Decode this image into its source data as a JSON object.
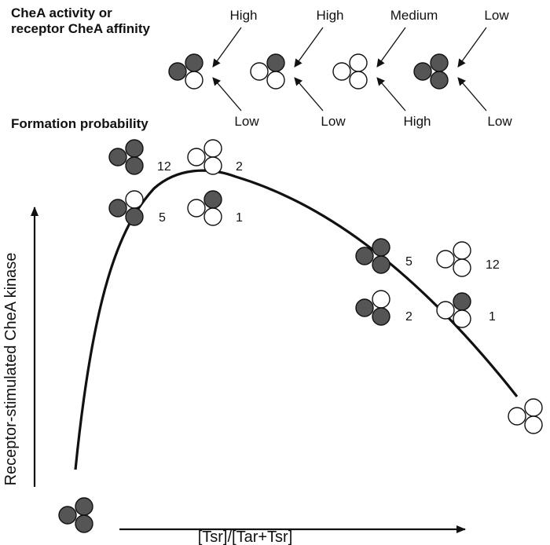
{
  "header": {
    "activity_line1": "CheA activity or",
    "activity_line2": "receptor CheA affinity",
    "formation": "Formation probability"
  },
  "legend": [
    {
      "top": "High",
      "bottom": "Low",
      "pattern": [
        "dark",
        "dark",
        "light"
      ]
    },
    {
      "top": "High",
      "bottom": "Low",
      "pattern": [
        "light",
        "dark",
        "light"
      ]
    },
    {
      "top": "Medium",
      "bottom": "High",
      "pattern": [
        "light",
        "light",
        "light"
      ]
    },
    {
      "top": "Low",
      "bottom": "Low",
      "pattern": [
        "dark",
        "dark",
        "dark"
      ]
    }
  ],
  "axes": {
    "y_label": "Receptor-stimulated CheA kinase",
    "x_label": "[Tsr]/[Tar+Tsr]"
  },
  "colors": {
    "dark": "#555555",
    "light": "#ffffff",
    "stroke": "#111111"
  },
  "counts": {
    "peak_dark_dark": "12",
    "peak_light_all": "2",
    "peak_dark_mix": "5",
    "peak_light_mix": "1",
    "mid_dark_dark": "5",
    "mid_light_all": "12",
    "mid_dark_mix": "2",
    "mid_light_mix": "1"
  }
}
